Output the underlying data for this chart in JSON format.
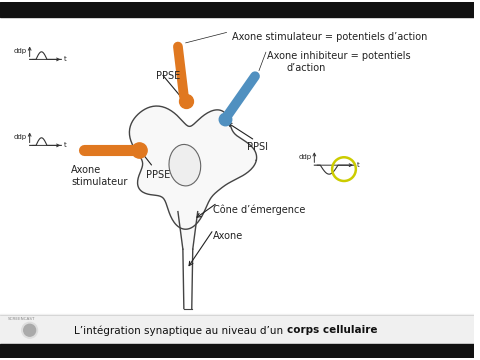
{
  "bg_color": "#ffffff",
  "top_bar_color": "#111111",
  "bottom_bar_color": "#111111",
  "title_text": "L’intégration synaptique au niveau d’un ",
  "title_bold": "corps cellulaire",
  "label_axone_stim1": "Axone stimulateur = potentiels d’action",
  "label_axone_inhib": "Axone inhibiteur = potentiels\n                 d’action",
  "label_ppse1": "PPSE",
  "label_ppse2": "PPSE",
  "label_ppsi": "PPSI",
  "label_axone_stim2": "Axone\nstimulateur",
  "label_cone": "Cône d’émergence",
  "label_axone": "Axone",
  "orange_color": "#e07820",
  "blue_color": "#5090c0",
  "yellow_circle_color": "#cccc00",
  "text_color": "#222222",
  "neuron_fill": "#f8f8f8",
  "neuron_stroke": "#444444",
  "nucleus_fill": "#eeeeee",
  "nucleus_stroke": "#666666"
}
